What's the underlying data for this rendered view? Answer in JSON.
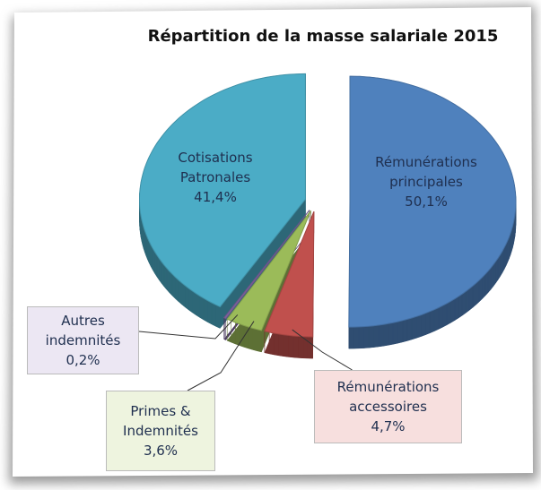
{
  "chart_data": {
    "type": "pie",
    "title": "Répartition de la masse salariale 2015",
    "categories": [
      "Rémunérations principales",
      "Rémunérations accessoires",
      "Primes & Indemnités",
      "Autres indemnités",
      "Cotisations Patronales"
    ],
    "values": [
      50.1,
      4.7,
      3.6,
      0.2,
      41.4
    ],
    "value_labels": [
      "50,1%",
      "4,7%",
      "3,6%",
      "0,2%",
      "41,4%"
    ],
    "colors": [
      "#4f81bd",
      "#c0504d",
      "#9bbb59",
      "#8064a2",
      "#4bacc6"
    ]
  }
}
